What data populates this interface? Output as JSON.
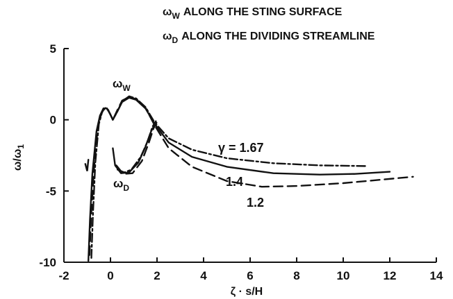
{
  "chart_data": {
    "type": "line",
    "legend_lines": [
      {
        "symbol": "ω",
        "subscript": "W",
        "text": "ALONG THE STING SURFACE"
      },
      {
        "symbol": "ω",
        "subscript": "D",
        "text": "ALONG THE DIVIDING STREAMLINE"
      }
    ],
    "xlabel": "ζ · s/H",
    "ylabel": {
      "num": "ω",
      "den": "ω",
      "den_sub": "1"
    },
    "xlim": [
      -2,
      14
    ],
    "ylim": [
      -10,
      5
    ],
    "x_ticks": [
      -2,
      0,
      2,
      4,
      6,
      8,
      10,
      12,
      14
    ],
    "y_ticks": [
      5,
      0,
      -5,
      -10
    ],
    "grid": false,
    "curve_labels": [
      {
        "text": "ω",
        "sub": "W"
      },
      {
        "text": "ω",
        "sub": "D"
      }
    ],
    "series": [
      {
        "name": "γ = 1.67",
        "style": "dash-dot",
        "wall": [
          [
            -0.82,
            -9.7
          ],
          [
            -0.75,
            -6.5
          ],
          [
            -0.65,
            -3.0
          ],
          [
            -0.5,
            -0.3
          ],
          [
            -0.35,
            0.6
          ],
          [
            -0.2,
            0.85
          ],
          [
            -0.05,
            0.55
          ],
          [
            0.1,
            0.0
          ],
          [
            0.3,
            0.6
          ],
          [
            0.5,
            1.3
          ],
          [
            0.8,
            1.65
          ],
          [
            1.1,
            1.5
          ],
          [
            1.5,
            0.9
          ],
          [
            1.9,
            -0.2
          ],
          [
            2.5,
            -1.3
          ],
          [
            3.5,
            -2.1
          ],
          [
            5,
            -2.7
          ],
          [
            7,
            -3.05
          ],
          [
            9,
            -3.2
          ],
          [
            11,
            -3.25
          ]
        ],
        "dividing": [
          [
            0.3,
            -3.5
          ],
          [
            0.6,
            -3.7
          ],
          [
            0.9,
            -3.5
          ],
          [
            1.3,
            -2.6
          ],
          [
            1.6,
            -1.5
          ],
          [
            1.8,
            -0.5
          ],
          [
            1.95,
            -0.1
          ]
        ]
      },
      {
        "name": "1.4",
        "style": "solid",
        "wall": [
          [
            -0.95,
            -9.9
          ],
          [
            -0.88,
            -7.0
          ],
          [
            -0.78,
            -3.8
          ],
          [
            -0.6,
            -0.8
          ],
          [
            -0.45,
            0.3
          ],
          [
            -0.3,
            0.8
          ],
          [
            -0.15,
            0.8
          ],
          [
            0.0,
            0.35
          ],
          [
            0.1,
            0.0
          ],
          [
            0.3,
            0.6
          ],
          [
            0.5,
            1.25
          ],
          [
            0.8,
            1.55
          ],
          [
            1.1,
            1.4
          ],
          [
            1.5,
            0.8
          ],
          [
            1.9,
            -0.3
          ],
          [
            2.5,
            -1.6
          ],
          [
            3.5,
            -2.6
          ],
          [
            5,
            -3.3
          ],
          [
            7,
            -3.75
          ],
          [
            9,
            -3.85
          ],
          [
            10.5,
            -3.8
          ],
          [
            12,
            -3.65
          ]
        ],
        "dividing": [
          [
            0.1,
            -2.0
          ],
          [
            0.2,
            -3.2
          ],
          [
            0.45,
            -3.75
          ],
          [
            0.8,
            -3.7
          ],
          [
            1.2,
            -3.0
          ],
          [
            1.5,
            -1.9
          ],
          [
            1.75,
            -0.8
          ],
          [
            1.95,
            -0.2
          ]
        ]
      },
      {
        "name": "1.2",
        "style": "dashed",
        "wall": [
          [
            -0.9,
            -9.5
          ],
          [
            -0.82,
            -6.5
          ],
          [
            -0.7,
            -3.2
          ],
          [
            -0.55,
            -0.6
          ],
          [
            -0.4,
            0.4
          ],
          [
            -0.25,
            0.85
          ],
          [
            -0.1,
            0.7
          ],
          [
            0.1,
            0.0
          ],
          [
            0.3,
            0.7
          ],
          [
            0.5,
            1.35
          ],
          [
            0.8,
            1.6
          ],
          [
            1.1,
            1.45
          ],
          [
            1.5,
            0.85
          ],
          [
            1.9,
            -0.4
          ],
          [
            2.5,
            -2.0
          ],
          [
            3.5,
            -3.3
          ],
          [
            5,
            -4.3
          ],
          [
            6.5,
            -4.7
          ],
          [
            8,
            -4.65
          ],
          [
            10,
            -4.45
          ],
          [
            13,
            -4.0
          ]
        ],
        "dividing": [
          [
            0.25,
            -3.2
          ],
          [
            0.55,
            -3.8
          ],
          [
            0.95,
            -3.75
          ],
          [
            1.35,
            -2.9
          ],
          [
            1.65,
            -1.6
          ],
          [
            1.85,
            -0.6
          ],
          [
            1.98,
            -0.2
          ]
        ]
      }
    ],
    "left_tick": [
      [
        -1.08,
        -3.1
      ],
      [
        -1.0,
        -3.6
      ],
      [
        -0.95,
        -2.8
      ]
    ]
  }
}
